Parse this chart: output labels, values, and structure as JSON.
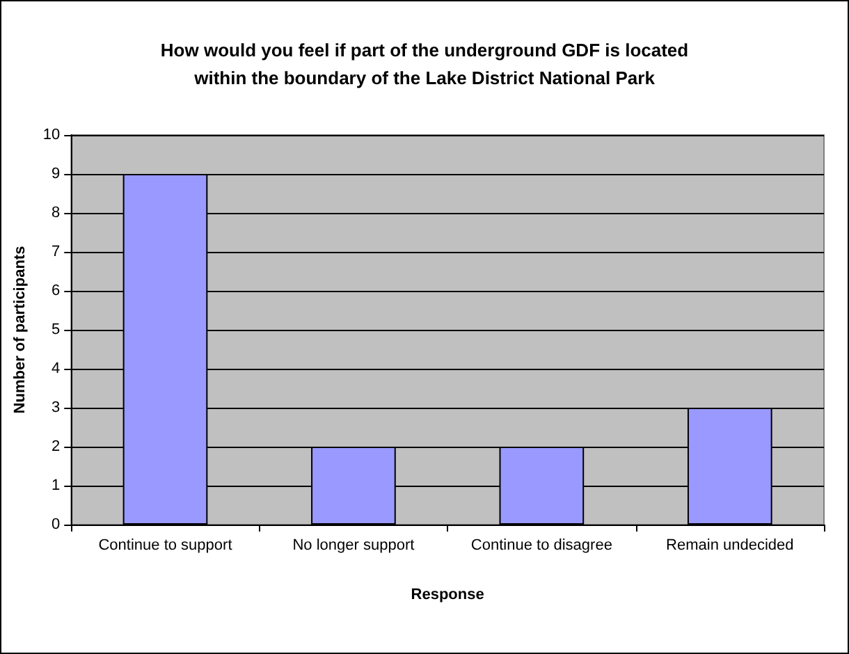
{
  "chart_data": {
    "type": "bar",
    "title": "How would you feel if part of the underground GDF is located\nwithin the boundary of the Lake District National Park",
    "xlabel": "Response",
    "ylabel": "Number of participants",
    "categories": [
      "Continue to support",
      "No longer support",
      "Continue to disagree",
      "Remain undecided"
    ],
    "values": [
      9,
      2,
      2,
      3
    ],
    "color": "#9999ff",
    "ylim": [
      0,
      10
    ],
    "yticks": [
      0,
      1,
      2,
      3,
      4,
      5,
      6,
      7,
      8,
      9,
      10
    ],
    "grid": "y"
  }
}
